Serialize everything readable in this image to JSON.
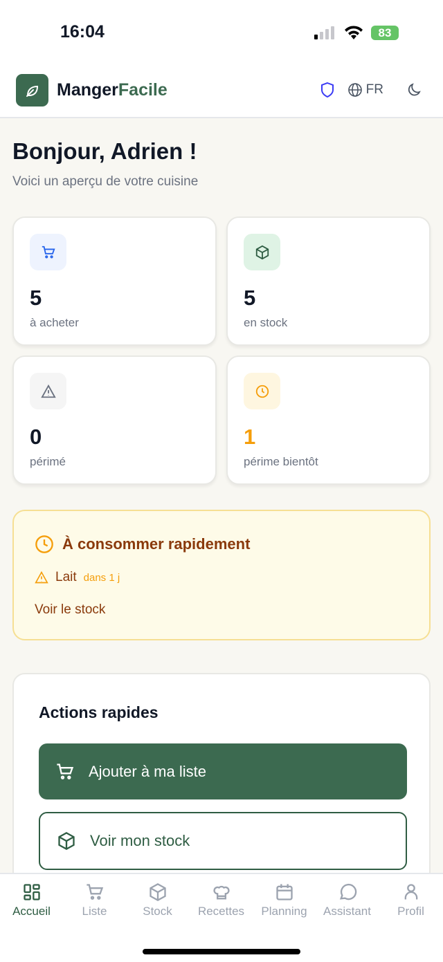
{
  "status_bar": {
    "time": "16:04",
    "battery": "83"
  },
  "header": {
    "brand_part1": "Manger",
    "brand_part2": "Facile",
    "language": "FR"
  },
  "greeting": {
    "title": "Bonjour, Adrien !",
    "subtitle": "Voici un aperçu de votre cuisine"
  },
  "stats": [
    {
      "value": "5",
      "label": "à acheter",
      "icon": "cart-icon"
    },
    {
      "value": "5",
      "label": "en stock",
      "icon": "box-icon"
    },
    {
      "value": "0",
      "label": "périmé",
      "icon": "warning-icon"
    },
    {
      "value": "1",
      "label": "périme bientôt",
      "icon": "clock-icon"
    }
  ],
  "alert": {
    "title": "À consommer rapidement",
    "item": "Lait",
    "item_due": "dans 1 j",
    "link": "Voir le stock"
  },
  "actions": {
    "title": "Actions rapides",
    "add_to_list": "Ajouter à ma liste",
    "view_stock": "Voir mon stock"
  },
  "nav": [
    {
      "label": "Accueil"
    },
    {
      "label": "Liste"
    },
    {
      "label": "Stock"
    },
    {
      "label": "Recettes"
    },
    {
      "label": "Planning"
    },
    {
      "label": "Assistant"
    },
    {
      "label": "Profil"
    }
  ],
  "colors": {
    "brand": "#3c6a50",
    "warning": "#f59e0b",
    "alert_text": "#8a3a0c"
  }
}
